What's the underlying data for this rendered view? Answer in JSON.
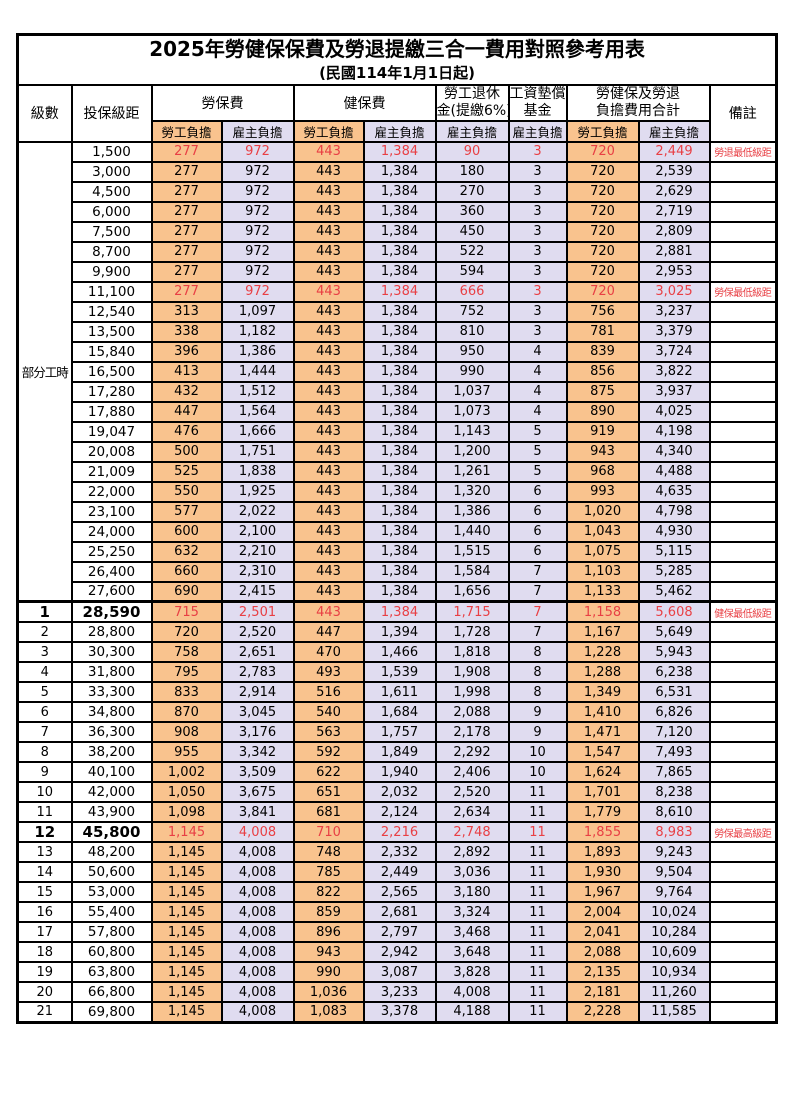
{
  "title": "2025年勞健保保費及勞退提繳三合一費用對照參考用表",
  "subtitle": "(民國114年1月1日起)",
  "colors": {
    "employee_bg": "#F9C38E",
    "employer_bg": "#E0DCF0",
    "highlight_red": "#E83F44",
    "border": "#000000"
  },
  "columns": {
    "level": "級數",
    "grade": "投保級距",
    "labor_insurance": "勞保費",
    "health_insurance": "健保費",
    "pension_line1": "勞工退休",
    "pension_line2": "金(提繳6%)",
    "wage_fund_line1": "工資墊償",
    "wage_fund_line2": "基金",
    "total_line1": "勞健保及勞退",
    "total_line2": "負擔費用合計",
    "note": "備註",
    "employee_share": "勞工負擔",
    "employer_share": "雇主負擔"
  },
  "part_time_label": "部分工時",
  "rows": [
    {
      "level": "",
      "grade": "1,500",
      "values": [
        "277",
        "972",
        "443",
        "1,384",
        "90",
        "3",
        "720",
        "2,449"
      ],
      "note": "勞退最低級距",
      "red": true,
      "bold": false
    },
    {
      "level": "",
      "grade": "3,000",
      "values": [
        "277",
        "972",
        "443",
        "1,384",
        "180",
        "3",
        "720",
        "2,539"
      ],
      "note": "",
      "red": false,
      "bold": false
    },
    {
      "level": "",
      "grade": "4,500",
      "values": [
        "277",
        "972",
        "443",
        "1,384",
        "270",
        "3",
        "720",
        "2,629"
      ],
      "note": "",
      "red": false,
      "bold": false
    },
    {
      "level": "",
      "grade": "6,000",
      "values": [
        "277",
        "972",
        "443",
        "1,384",
        "360",
        "3",
        "720",
        "2,719"
      ],
      "note": "",
      "red": false,
      "bold": false
    },
    {
      "level": "",
      "grade": "7,500",
      "values": [
        "277",
        "972",
        "443",
        "1,384",
        "450",
        "3",
        "720",
        "2,809"
      ],
      "note": "",
      "red": false,
      "bold": false
    },
    {
      "level": "",
      "grade": "8,700",
      "values": [
        "277",
        "972",
        "443",
        "1,384",
        "522",
        "3",
        "720",
        "2,881"
      ],
      "note": "",
      "red": false,
      "bold": false
    },
    {
      "level": "",
      "grade": "9,900",
      "values": [
        "277",
        "972",
        "443",
        "1,384",
        "594",
        "3",
        "720",
        "2,953"
      ],
      "note": "",
      "red": false,
      "bold": false
    },
    {
      "level": "",
      "grade": "11,100",
      "values": [
        "277",
        "972",
        "443",
        "1,384",
        "666",
        "3",
        "720",
        "3,025"
      ],
      "note": "勞保最低級距",
      "red": true,
      "bold": false
    },
    {
      "level": "",
      "grade": "12,540",
      "values": [
        "313",
        "1,097",
        "443",
        "1,384",
        "752",
        "3",
        "756",
        "3,237"
      ],
      "note": "",
      "red": false,
      "bold": false
    },
    {
      "level": "",
      "grade": "13,500",
      "values": [
        "338",
        "1,182",
        "443",
        "1,384",
        "810",
        "3",
        "781",
        "3,379"
      ],
      "note": "",
      "red": false,
      "bold": false
    },
    {
      "level": "",
      "grade": "15,840",
      "values": [
        "396",
        "1,386",
        "443",
        "1,384",
        "950",
        "4",
        "839",
        "3,724"
      ],
      "note": "",
      "red": false,
      "bold": false
    },
    {
      "level": "",
      "grade": "16,500",
      "values": [
        "413",
        "1,444",
        "443",
        "1,384",
        "990",
        "4",
        "856",
        "3,822"
      ],
      "note": "",
      "red": false,
      "bold": false
    },
    {
      "level": "",
      "grade": "17,280",
      "values": [
        "432",
        "1,512",
        "443",
        "1,384",
        "1,037",
        "4",
        "875",
        "3,937"
      ],
      "note": "",
      "red": false,
      "bold": false
    },
    {
      "level": "",
      "grade": "17,880",
      "values": [
        "447",
        "1,564",
        "443",
        "1,384",
        "1,073",
        "4",
        "890",
        "4,025"
      ],
      "note": "",
      "red": false,
      "bold": false
    },
    {
      "level": "",
      "grade": "19,047",
      "values": [
        "476",
        "1,666",
        "443",
        "1,384",
        "1,143",
        "5",
        "919",
        "4,198"
      ],
      "note": "",
      "red": false,
      "bold": false
    },
    {
      "level": "",
      "grade": "20,008",
      "values": [
        "500",
        "1,751",
        "443",
        "1,384",
        "1,200",
        "5",
        "943",
        "4,340"
      ],
      "note": "",
      "red": false,
      "bold": false
    },
    {
      "level": "",
      "grade": "21,009",
      "values": [
        "525",
        "1,838",
        "443",
        "1,384",
        "1,261",
        "5",
        "968",
        "4,488"
      ],
      "note": "",
      "red": false,
      "bold": false
    },
    {
      "level": "",
      "grade": "22,000",
      "values": [
        "550",
        "1,925",
        "443",
        "1,384",
        "1,320",
        "6",
        "993",
        "4,635"
      ],
      "note": "",
      "red": false,
      "bold": false
    },
    {
      "level": "",
      "grade": "23,100",
      "values": [
        "577",
        "2,022",
        "443",
        "1,384",
        "1,386",
        "6",
        "1,020",
        "4,798"
      ],
      "note": "",
      "red": false,
      "bold": false
    },
    {
      "level": "",
      "grade": "24,000",
      "values": [
        "600",
        "2,100",
        "443",
        "1,384",
        "1,440",
        "6",
        "1,043",
        "4,930"
      ],
      "note": "",
      "red": false,
      "bold": false
    },
    {
      "level": "",
      "grade": "25,250",
      "values": [
        "632",
        "2,210",
        "443",
        "1,384",
        "1,515",
        "6",
        "1,075",
        "5,115"
      ],
      "note": "",
      "red": false,
      "bold": false
    },
    {
      "level": "",
      "grade": "26,400",
      "values": [
        "660",
        "2,310",
        "443",
        "1,384",
        "1,584",
        "7",
        "1,103",
        "5,285"
      ],
      "note": "",
      "red": false,
      "bold": false
    },
    {
      "level": "",
      "grade": "27,600",
      "values": [
        "690",
        "2,415",
        "443",
        "1,384",
        "1,656",
        "7",
        "1,133",
        "5,462"
      ],
      "note": "",
      "red": false,
      "bold": false
    },
    {
      "level": "1",
      "grade": "28,590",
      "values": [
        "715",
        "2,501",
        "443",
        "1,384",
        "1,715",
        "7",
        "1,158",
        "5,608"
      ],
      "note": "健保最低級距",
      "red": true,
      "bold": true
    },
    {
      "level": "2",
      "grade": "28,800",
      "values": [
        "720",
        "2,520",
        "447",
        "1,394",
        "1,728",
        "7",
        "1,167",
        "5,649"
      ],
      "note": "",
      "red": false,
      "bold": false
    },
    {
      "level": "3",
      "grade": "30,300",
      "values": [
        "758",
        "2,651",
        "470",
        "1,466",
        "1,818",
        "8",
        "1,228",
        "5,943"
      ],
      "note": "",
      "red": false,
      "bold": false
    },
    {
      "level": "4",
      "grade": "31,800",
      "values": [
        "795",
        "2,783",
        "493",
        "1,539",
        "1,908",
        "8",
        "1,288",
        "6,238"
      ],
      "note": "",
      "red": false,
      "bold": false
    },
    {
      "level": "5",
      "grade": "33,300",
      "values": [
        "833",
        "2,914",
        "516",
        "1,611",
        "1,998",
        "8",
        "1,349",
        "6,531"
      ],
      "note": "",
      "red": false,
      "bold": false
    },
    {
      "level": "6",
      "grade": "34,800",
      "values": [
        "870",
        "3,045",
        "540",
        "1,684",
        "2,088",
        "9",
        "1,410",
        "6,826"
      ],
      "note": "",
      "red": false,
      "bold": false
    },
    {
      "level": "7",
      "grade": "36,300",
      "values": [
        "908",
        "3,176",
        "563",
        "1,757",
        "2,178",
        "9",
        "1,471",
        "7,120"
      ],
      "note": "",
      "red": false,
      "bold": false
    },
    {
      "level": "8",
      "grade": "38,200",
      "values": [
        "955",
        "3,342",
        "592",
        "1,849",
        "2,292",
        "10",
        "1,547",
        "7,493"
      ],
      "note": "",
      "red": false,
      "bold": false
    },
    {
      "level": "9",
      "grade": "40,100",
      "values": [
        "1,002",
        "3,509",
        "622",
        "1,940",
        "2,406",
        "10",
        "1,624",
        "7,865"
      ],
      "note": "",
      "red": false,
      "bold": false
    },
    {
      "level": "10",
      "grade": "42,000",
      "values": [
        "1,050",
        "3,675",
        "651",
        "2,032",
        "2,520",
        "11",
        "1,701",
        "8,238"
      ],
      "note": "",
      "red": false,
      "bold": false
    },
    {
      "level": "11",
      "grade": "43,900",
      "values": [
        "1,098",
        "3,841",
        "681",
        "2,124",
        "2,634",
        "11",
        "1,779",
        "8,610"
      ],
      "note": "",
      "red": false,
      "bold": false
    },
    {
      "level": "12",
      "grade": "45,800",
      "values": [
        "1,145",
        "4,008",
        "710",
        "2,216",
        "2,748",
        "11",
        "1,855",
        "8,983"
      ],
      "note": "勞保最高級距",
      "red": true,
      "bold": true
    },
    {
      "level": "13",
      "grade": "48,200",
      "values": [
        "1,145",
        "4,008",
        "748",
        "2,332",
        "2,892",
        "11",
        "1,893",
        "9,243"
      ],
      "note": "",
      "red": false,
      "bold": false
    },
    {
      "level": "14",
      "grade": "50,600",
      "values": [
        "1,145",
        "4,008",
        "785",
        "2,449",
        "3,036",
        "11",
        "1,930",
        "9,504"
      ],
      "note": "",
      "red": false,
      "bold": false
    },
    {
      "level": "15",
      "grade": "53,000",
      "values": [
        "1,145",
        "4,008",
        "822",
        "2,565",
        "3,180",
        "11",
        "1,967",
        "9,764"
      ],
      "note": "",
      "red": false,
      "bold": false
    },
    {
      "level": "16",
      "grade": "55,400",
      "values": [
        "1,145",
        "4,008",
        "859",
        "2,681",
        "3,324",
        "11",
        "2,004",
        "10,024"
      ],
      "note": "",
      "red": false,
      "bold": false
    },
    {
      "level": "17",
      "grade": "57,800",
      "values": [
        "1,145",
        "4,008",
        "896",
        "2,797",
        "3,468",
        "11",
        "2,041",
        "10,284"
      ],
      "note": "",
      "red": false,
      "bold": false
    },
    {
      "level": "18",
      "grade": "60,800",
      "values": [
        "1,145",
        "4,008",
        "943",
        "2,942",
        "3,648",
        "11",
        "2,088",
        "10,609"
      ],
      "note": "",
      "red": false,
      "bold": false
    },
    {
      "level": "19",
      "grade": "63,800",
      "values": [
        "1,145",
        "4,008",
        "990",
        "3,087",
        "3,828",
        "11",
        "2,135",
        "10,934"
      ],
      "note": "",
      "red": false,
      "bold": false
    },
    {
      "level": "20",
      "grade": "66,800",
      "values": [
        "1,145",
        "4,008",
        "1,036",
        "3,233",
        "4,008",
        "11",
        "2,181",
        "11,260"
      ],
      "note": "",
      "red": false,
      "bold": false
    },
    {
      "level": "21",
      "grade": "69,800",
      "values": [
        "1,145",
        "4,008",
        "1,083",
        "3,378",
        "4,188",
        "11",
        "2,228",
        "11,585"
      ],
      "note": "",
      "red": false,
      "bold": false
    }
  ],
  "value_column_types": [
    "emp",
    "er",
    "emp",
    "er",
    "er",
    "er",
    "emp",
    "er"
  ],
  "part_time_row_count": 23,
  "numbered_section_start_index": 23
}
